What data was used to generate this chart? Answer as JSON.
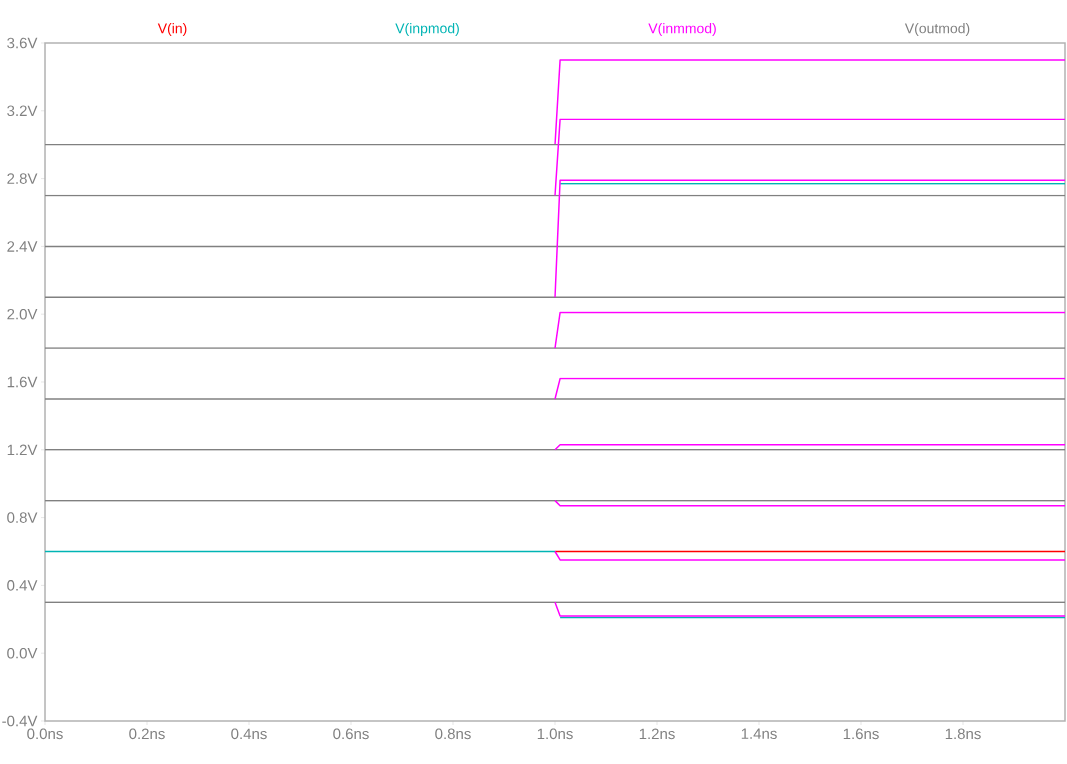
{
  "chart_data": {
    "type": "line",
    "legend": "top",
    "grid": false,
    "line_style": "solid",
    "marker": "none",
    "xlim": [
      0,
      2.0
    ],
    "xticks": [
      {
        "value": 0,
        "label": "0.0ns"
      },
      {
        "value": 0.2,
        "label": "0.2ns"
      },
      {
        "value": 0.4,
        "label": "0.4ns"
      },
      {
        "value": 0.6,
        "label": "0.6ns"
      },
      {
        "value": 0.8,
        "label": "0.8ns"
      },
      {
        "value": 1.0,
        "label": "1.0ns"
      },
      {
        "value": 1.2,
        "label": "1.2ns"
      },
      {
        "value": 1.4,
        "label": "1.4ns"
      },
      {
        "value": 1.6,
        "label": "1.6ns"
      },
      {
        "value": 1.8,
        "label": "1.8ns"
      }
    ],
    "ylim": [
      -0.4,
      3.6
    ],
    "yticks": [
      {
        "value": -0.4,
        "label": "-0.4V"
      },
      {
        "value": 0.0,
        "label": "0.0V"
      },
      {
        "value": 0.4,
        "label": "0.4V"
      },
      {
        "value": 0.8,
        "label": "0.8V"
      },
      {
        "value": 1.2,
        "label": "1.2V"
      },
      {
        "value": 1.6,
        "label": "1.6V"
      },
      {
        "value": 2.0,
        "label": "2.0V"
      },
      {
        "value": 2.4,
        "label": "2.4V"
      },
      {
        "value": 2.8,
        "label": "2.8V"
      },
      {
        "value": 3.2,
        "label": "3.2V"
      },
      {
        "value": 3.6,
        "label": "3.6V"
      }
    ],
    "series": [
      {
        "name": "V(in)",
        "color": "#ff0000",
        "x": [
          1.0,
          2.0
        ],
        "values": [
          0.6,
          0.6
        ]
      },
      {
        "name": "V(inpmod)",
        "color": "#00b4b4",
        "x": [
          0,
          1.0
        ],
        "values": [
          0.6,
          0.6
        ]
      },
      {
        "name": "V(inmmod)",
        "color": "#ff00ff",
        "x": [
          1.0,
          1.01,
          2.0
        ],
        "values": [
          3.0,
          3.5,
          3.5
        ]
      },
      {
        "name": "V(outmod)",
        "color": "#808080",
        "x": [
          0,
          2.0
        ],
        "values": [
          3.0,
          3.0
        ]
      },
      {
        "color": "#808080",
        "x": [
          0,
          2.0
        ],
        "values": [
          2.7,
          2.7
        ]
      },
      {
        "color": "#808080",
        "x": [
          0,
          2.0
        ],
        "values": [
          2.4,
          2.4
        ]
      },
      {
        "color": "#808080",
        "x": [
          0,
          2.0
        ],
        "values": [
          2.1,
          2.1
        ]
      },
      {
        "color": "#808080",
        "x": [
          0,
          2.0
        ],
        "values": [
          1.8,
          1.8
        ]
      },
      {
        "color": "#808080",
        "x": [
          0,
          2.0
        ],
        "values": [
          1.5,
          1.5
        ]
      },
      {
        "color": "#808080",
        "x": [
          0,
          2.0
        ],
        "values": [
          1.2,
          1.2
        ]
      },
      {
        "color": "#808080",
        "x": [
          0,
          2.0
        ],
        "values": [
          0.9,
          0.9
        ]
      },
      {
        "color": "#808080",
        "x": [
          0,
          2.0
        ],
        "values": [
          0.3,
          0.3
        ]
      },
      {
        "color": "#00b4b4",
        "x": [
          1.01,
          2.0
        ],
        "values": [
          2.77,
          2.77
        ]
      },
      {
        "color": "#00b4b4",
        "x": [
          1.01,
          2.0
        ],
        "values": [
          0.21,
          0.21
        ]
      },
      {
        "color": "#ff00ff",
        "x": [
          1.0,
          1.01,
          2.0
        ],
        "values": [
          2.7,
          3.15,
          3.15
        ]
      },
      {
        "color": "#ff00ff",
        "x": [
          1.0,
          1.01,
          2.0
        ],
        "values": [
          2.1,
          2.79,
          2.79
        ]
      },
      {
        "color": "#ff00ff",
        "x": [
          1.0,
          1.01,
          2.0
        ],
        "values": [
          1.8,
          2.01,
          2.01
        ]
      },
      {
        "color": "#ff00ff",
        "x": [
          1.0,
          1.01,
          2.0
        ],
        "values": [
          1.5,
          1.62,
          1.62
        ]
      },
      {
        "color": "#ff00ff",
        "x": [
          1.0,
          1.01,
          2.0
        ],
        "values": [
          1.2,
          1.23,
          1.23
        ]
      },
      {
        "color": "#ff00ff",
        "x": [
          1.0,
          1.01,
          2.0
        ],
        "values": [
          0.9,
          0.87,
          0.87
        ]
      },
      {
        "color": "#ff00ff",
        "x": [
          1.0,
          1.01,
          2.0
        ],
        "values": [
          0.6,
          0.55,
          0.55
        ]
      },
      {
        "color": "#ff00ff",
        "x": [
          1.0,
          1.01,
          2.0
        ],
        "values": [
          0.3,
          0.22,
          0.22
        ]
      }
    ]
  }
}
